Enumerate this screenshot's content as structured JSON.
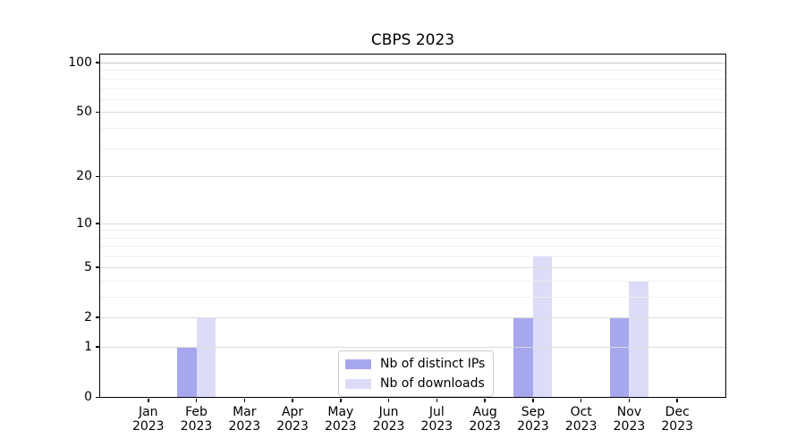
{
  "chart_data": {
    "type": "bar",
    "title": "CBPS 2023",
    "categories": [
      "Jan",
      "Feb",
      "Mar",
      "Apr",
      "May",
      "Jun",
      "Jul",
      "Aug",
      "Sep",
      "Oct",
      "Nov",
      "Dec"
    ],
    "category_year": "2023",
    "series": [
      {
        "name": "Nb of distinct IPs",
        "color": "#a7a7ef",
        "values": [
          0,
          1,
          0,
          0,
          0,
          0,
          0,
          0,
          2,
          0,
          2,
          0
        ]
      },
      {
        "name": "Nb of downloads",
        "color": "#dddcf8",
        "values": [
          0,
          2,
          0,
          0,
          0,
          0,
          0,
          0,
          6,
          0,
          4,
          0
        ]
      }
    ],
    "yscale": "log1p",
    "ylim": [
      0,
      100
    ],
    "ytick_values": [
      0,
      1,
      2,
      5,
      10,
      20,
      50,
      100
    ],
    "ytick_labels": [
      "0",
      "1",
      "2",
      "5",
      "10",
      "20",
      "50",
      "100"
    ],
    "minor_ytick_values": [
      3,
      4,
      6,
      7,
      8,
      9,
      30,
      40,
      60,
      70,
      80,
      90
    ],
    "grid": "on",
    "legend_position": "lower center"
  },
  "colors": {
    "grid_major": "#dbdbdb",
    "grid_minor": "#efefef",
    "grid_top": "#c8c8c8",
    "spine": "#000000",
    "background": "#ffffff"
  }
}
